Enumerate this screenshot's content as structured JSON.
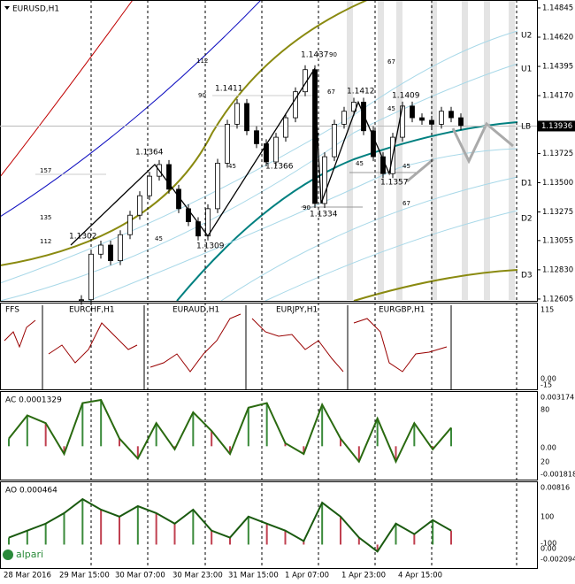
{
  "header": {
    "symbol": "EURUSD,H1"
  },
  "chart_data": {
    "type": "candlestick",
    "ylim": [
      1.12591,
      1.14906
    ],
    "yticks": [
      1.14845,
      {
        "value": 1.1462,
        "label": "1.14620"
      },
      1.14395,
      {
        "value": 1.1417,
        "label": "1.14170"
      },
      1.13725,
      {
        "value": 1.135,
        "label": "1.13500"
      },
      1.13275,
      1.13055,
      {
        "value": 1.1283,
        "label": "1.12830"
      },
      1.12605
    ],
    "current_price": 1.13936,
    "closes": [
      1.126,
      1.1295,
      1.1302,
      1.129,
      1.131,
      1.1325,
      1.134,
      1.1355,
      1.1364,
      1.1345,
      1.133,
      1.132,
      1.1309,
      1.133,
      1.1365,
      1.1395,
      1.1411,
      1.139,
      1.138,
      1.1366,
      1.1385,
      1.14,
      1.142,
      1.1437,
      1.1334,
      1.137,
      1.1395,
      1.1405,
      1.1412,
      1.139,
      1.137,
      1.1357,
      1.1385,
      1.1409,
      1.14,
      1.1398,
      1.1395,
      1.1405,
      1.14,
      1.1394
    ],
    "level_labels": [
      "U2",
      "U1",
      "LB",
      "D1",
      "D2",
      "D3"
    ],
    "price_annotations": [
      1.1302,
      1.1364,
      1.1309,
      1.1411,
      1.1366,
      1.1437,
      1.1334,
      1.1412,
      1.1357,
      1.1409
    ],
    "fib_labels": [
      112,
      90,
      90,
      67,
      67,
      45,
      157,
      135,
      112,
      45,
      45,
      45,
      45,
      90,
      67
    ],
    "time_labels": [
      "28 Mar 2016",
      "29 Mar 15:00",
      "30 Mar 07:00",
      "30 Mar 23:00",
      "31 Mar 15:00",
      "1 Apr 07:00",
      "1 Apr 23:00",
      "4 Apr 15:00"
    ]
  },
  "indicators": {
    "ffs": {
      "title": "FFS",
      "pairs": [
        "EURCHF,H1",
        "EURAUD,H1",
        "EURJPY,H1",
        "EURGBP,H1"
      ],
      "ticks": [
        "115",
        "0.00",
        "-15"
      ]
    },
    "ac": {
      "title": "AC 0.0001329",
      "ticks": [
        "0.003174",
        "80",
        "0.00",
        "20",
        "-0.001818"
      ],
      "ylim": [
        -0.001818,
        0.003174
      ],
      "values": [
        0.0005,
        0.002,
        0.0015,
        -0.0005,
        0.0028,
        0.003,
        0.0005,
        -0.0008,
        0.0015,
        -0.0002,
        0.0022,
        0.001,
        -0.0005,
        0.0025,
        0.0028,
        0.0002,
        -0.0005,
        0.0027,
        0.0005,
        -0.001,
        0.0018,
        -0.001,
        0.0015,
        -0.0002,
        0.0012
      ]
    },
    "ao": {
      "title": "AO 0.000464",
      "ticks": [
        "0.00816",
        "100",
        "0.00",
        "-100",
        "-0.002094"
      ],
      "ylim": [
        -0.002094,
        0.00816
      ],
      "values": [
        0.001,
        0.002,
        0.003,
        0.0045,
        0.0065,
        0.005,
        0.004,
        0.0055,
        0.0045,
        0.003,
        0.005,
        0.002,
        0.001,
        0.004,
        0.003,
        0.002,
        0.0005,
        0.006,
        0.004,
        0.001,
        -0.001,
        0.003,
        0.0015,
        0.0035,
        0.002
      ]
    }
  },
  "brand": "alpari"
}
